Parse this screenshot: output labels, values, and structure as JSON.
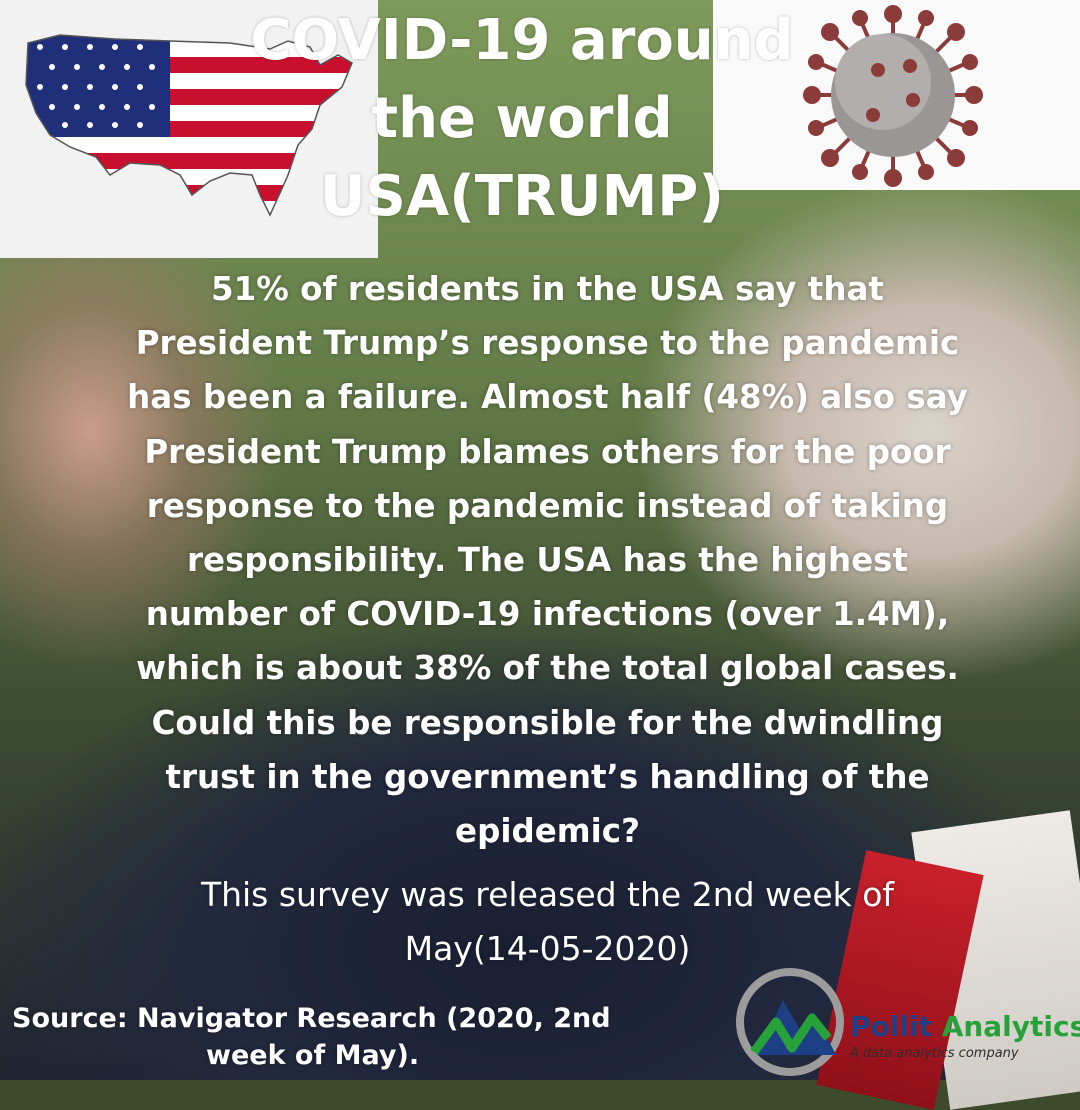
{
  "title_lines": [
    "COVID-19 around",
    "the world",
    "USA(TRUMP)"
  ],
  "body_lines": [
    "51% of residents in the USA say that",
    "President Trump’s response to the pandemic",
    "has been a failure. Almost half (48%) also say",
    "President Trump blames others for the poor",
    "response to the pandemic instead of taking",
    "responsibility. The USA has the highest",
    "number of COVID-19 infections (over 1.4M),",
    "which is about 38% of the total global cases.",
    "Could this be responsible for the dwindling",
    "trust in the government’s handling of the",
    "epidemic?"
  ],
  "survey_lines": [
    "This survey was released the 2nd week of",
    "May(14-05-2020)"
  ],
  "source_lines": [
    "Source: Navigator Research (2020, 2nd",
    "week of May)."
  ],
  "logo": {
    "brand_part1": "Pollit",
    "brand_part2": "Analytics",
    "tagline": "A data analytics company"
  },
  "colors": {
    "text": "#ffffff",
    "brand_blue": "#1d3f86",
    "brand_green": "#27a139",
    "flag_red": "#c8102e",
    "flag_blue": "#1f2f7a"
  },
  "icons": [
    "usa-flag-map-icon",
    "coronavirus-icon",
    "pollit-logo-icon"
  ]
}
